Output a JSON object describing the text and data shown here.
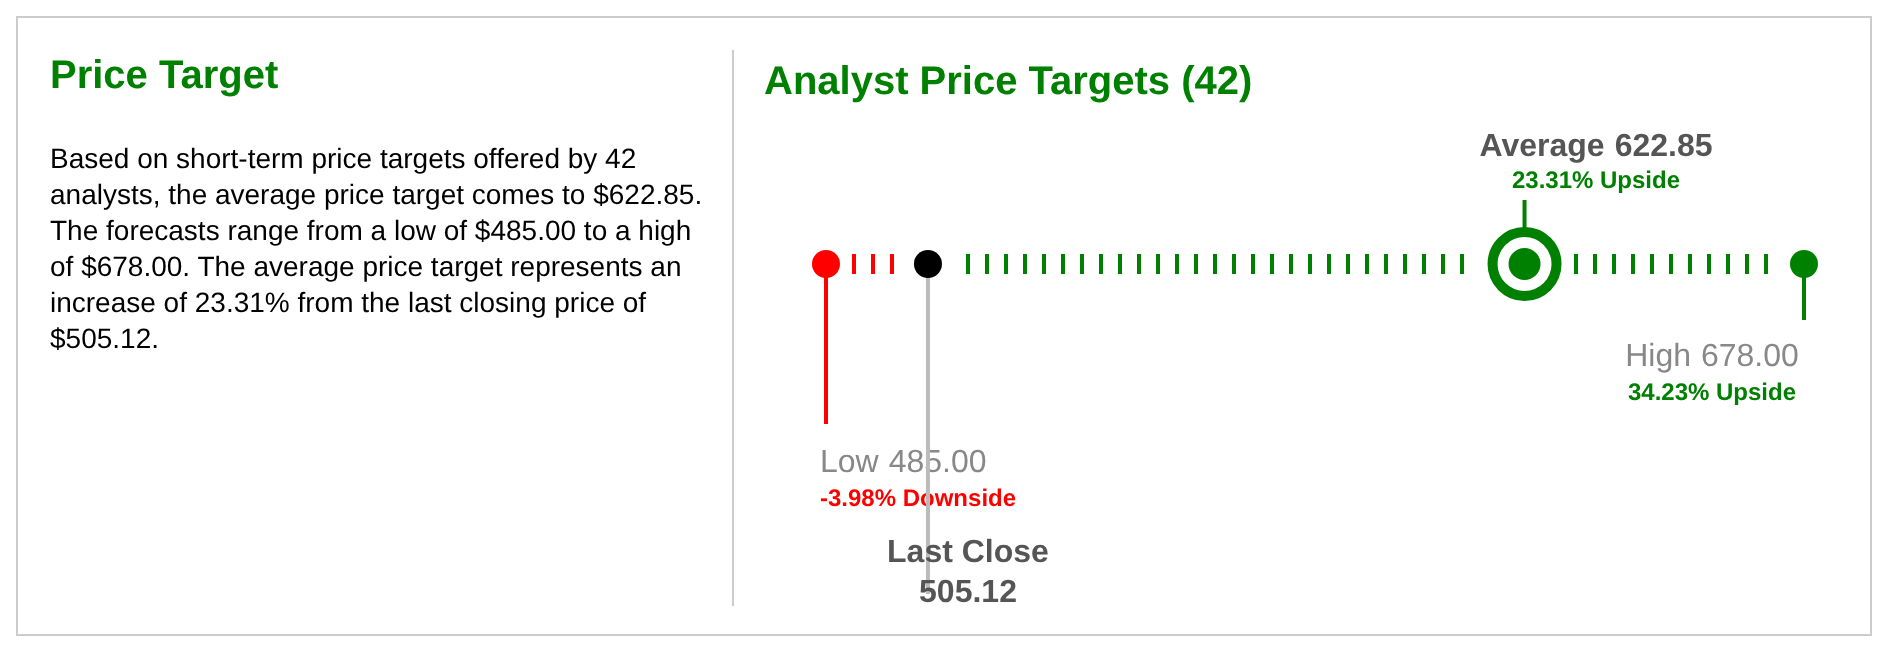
{
  "chart_data": [
    {
      "type": "other",
      "title": "Price Target",
      "annotations": [
        "Based on short-term price targets offered by 42 analysts, the average price target comes to $622.85. The forecasts range from a low of $485.00 to a high of $678.00. The average price target represents an increase of 23.31% from the last closing price of $505.12."
      ]
    },
    {
      "type": "other",
      "title": "Analyst Price Targets (42)",
      "categories": [
        "Low",
        "Last Close",
        "Average",
        "High"
      ],
      "values": [
        485,
        505.12,
        622.85,
        678
      ],
      "value_labels": [
        "485.00",
        "505.12",
        "622.85",
        "678.00"
      ],
      "colors": [
        "#ff0000",
        "#000000",
        "#008000",
        "#008000"
      ],
      "annotations": [
        {
          "text": "-3.98% Downside",
          "x": "Low"
        },
        {
          "text": "23.31% Upside",
          "x": "Average"
        },
        {
          "text": "34.23% Upside",
          "x": "High"
        }
      ]
    }
  ]
}
